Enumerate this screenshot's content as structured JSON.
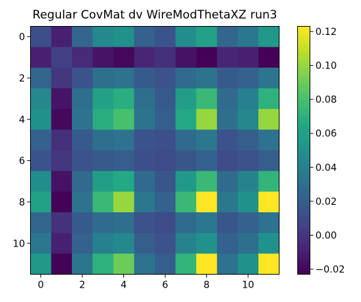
{
  "chart_data": {
    "type": "heatmap",
    "title": "Regular CovMat dv WireModThetaXZ run3",
    "xlabel": "",
    "ylabel": "",
    "colormap": "viridis",
    "x_ticks": [
      0,
      2,
      4,
      6,
      8,
      10
    ],
    "y_ticks": [
      0,
      2,
      4,
      6,
      8,
      10
    ],
    "colorbar_ticks": [
      -0.02,
      0.0,
      0.02,
      0.04,
      0.06,
      0.08,
      0.1,
      0.12
    ],
    "colorbar_tick_labels": [
      "−0.02",
      "0.00",
      "0.02",
      "0.04",
      "0.06",
      "0.08",
      "0.10",
      "0.12"
    ],
    "vmin": -0.023,
    "vmax": 0.123,
    "rows": 12,
    "cols": 12,
    "values": [
      [
        0.012,
        -0.01,
        0.025,
        0.045,
        0.05,
        0.022,
        0.015,
        0.048,
        0.06,
        0.025,
        0.035,
        0.055
      ],
      [
        -0.01,
        0.005,
        -0.005,
        -0.015,
        -0.02,
        -0.008,
        -0.003,
        -0.016,
        -0.022,
        -0.008,
        -0.01,
        -0.022
      ],
      [
        0.025,
        0.0,
        0.015,
        0.03,
        0.032,
        0.018,
        0.014,
        0.028,
        0.033,
        0.018,
        0.022,
        0.034
      ],
      [
        0.045,
        -0.015,
        0.03,
        0.06,
        0.068,
        0.03,
        0.018,
        0.058,
        0.075,
        0.028,
        0.04,
        0.07
      ],
      [
        0.05,
        -0.02,
        0.032,
        0.068,
        0.08,
        0.032,
        0.02,
        0.065,
        0.1,
        0.03,
        0.045,
        0.1
      ],
      [
        0.022,
        -0.003,
        0.018,
        0.03,
        0.032,
        0.015,
        0.012,
        0.028,
        0.035,
        0.014,
        0.02,
        0.032
      ],
      [
        0.015,
        0.0,
        0.014,
        0.018,
        0.02,
        0.012,
        0.01,
        0.016,
        0.022,
        0.01,
        0.014,
        0.02
      ],
      [
        0.048,
        -0.016,
        0.028,
        0.058,
        0.065,
        0.028,
        0.016,
        0.055,
        0.075,
        0.028,
        0.042,
        0.072
      ],
      [
        0.06,
        -0.022,
        0.033,
        0.075,
        0.1,
        0.035,
        0.022,
        0.075,
        0.123,
        0.035,
        0.05,
        0.123
      ],
      [
        0.025,
        -0.002,
        0.018,
        0.028,
        0.03,
        0.014,
        0.01,
        0.028,
        0.035,
        0.016,
        0.022,
        0.032
      ],
      [
        0.035,
        -0.01,
        0.022,
        0.04,
        0.045,
        0.02,
        0.014,
        0.042,
        0.05,
        0.022,
        0.03,
        0.05
      ],
      [
        0.055,
        -0.022,
        0.034,
        0.07,
        0.09,
        0.032,
        0.02,
        0.072,
        0.123,
        0.032,
        0.05,
        0.123
      ]
    ]
  }
}
